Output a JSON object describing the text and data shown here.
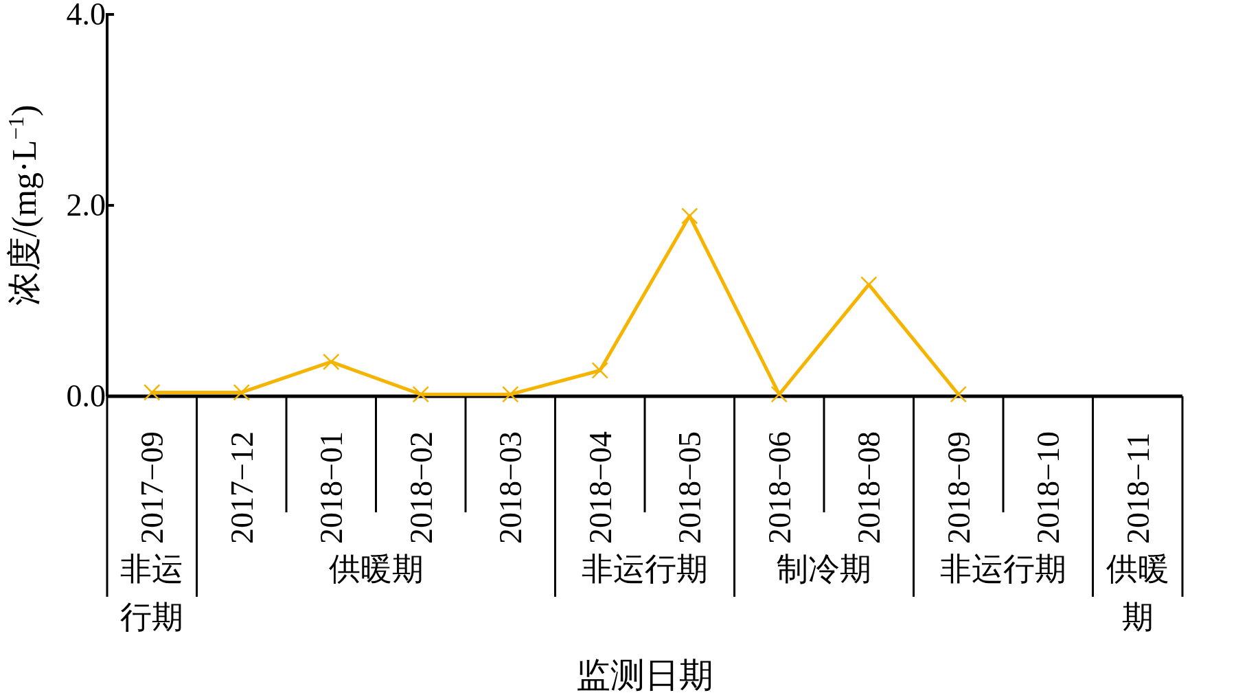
{
  "chart_data": {
    "type": "line",
    "xlabel": "监测日期",
    "ylabel": "浓度/(mg·L$^{−1}$)",
    "categories": [
      "2017−09",
      "2017−12",
      "2018−01",
      "2018−02",
      "2018−03",
      "2018−04",
      "2018−05",
      "2018−06",
      "2018−08",
      "2018−09",
      "2018−10",
      "2018−11"
    ],
    "series": [
      {
        "color": "#f5b400",
        "values": [
          0.04,
          0.04,
          0.36,
          0.02,
          0.02,
          0.27,
          1.89,
          0.02,
          1.17,
          0.02,
          null,
          null
        ]
      }
    ],
    "ylim": [
      0,
      4
    ],
    "yticks": [
      {
        "value": 0,
        "label": "0.0"
      },
      {
        "value": 2,
        "label": "2.0"
      },
      {
        "value": 4,
        "label": "4.0"
      }
    ],
    "marker": "cross",
    "line_style": "solid",
    "annotations": [
      "非运行期",
      "供暖期",
      "非运行期",
      "制冷期",
      "非运行期",
      "供暖期"
    ]
  }
}
